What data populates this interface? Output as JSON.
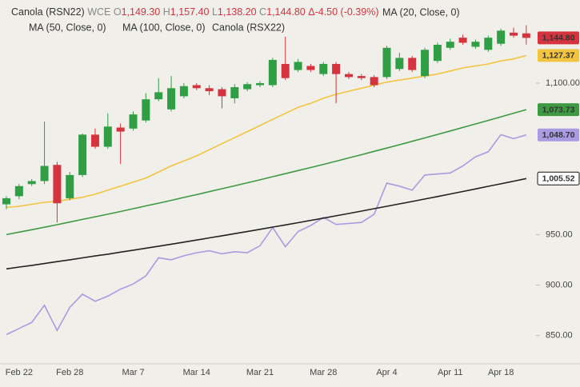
{
  "chart_data": {
    "type": "candlestick",
    "title": "Canola (RSN22)",
    "exchange": "WCE",
    "ohlc_header": {
      "o_key": "O",
      "o": "1,149.30",
      "h_key": "H",
      "h": "1,157.40",
      "l_key": "L",
      "l": "1,138.20",
      "c_key": "C",
      "c": "1,144.80",
      "change": "Δ-4.50 (-0.39%)"
    },
    "categories": [
      null,
      "Feb 22",
      null,
      null,
      null,
      "Feb 28",
      null,
      null,
      null,
      null,
      "Mar 7",
      null,
      null,
      null,
      null,
      "Mar 14",
      null,
      null,
      null,
      null,
      "Mar 21",
      null,
      null,
      null,
      null,
      "Mar 28",
      null,
      null,
      null,
      null,
      "Apr 4",
      null,
      null,
      null,
      null,
      "Apr 11",
      null,
      null,
      null,
      "Apr 18",
      null,
      null
    ],
    "open": [
      980,
      988,
      1000,
      1003,
      1019,
      986,
      1009,
      1049,
      1037,
      1056,
      1055,
      1063,
      1084,
      1074,
      1087,
      1098,
      1095,
      1094,
      1085,
      1094,
      1098,
      1098,
      1119,
      1113,
      1117,
      1109,
      1119,
      1109,
      1107,
      1106,
      1106,
      1114,
      1125,
      1107,
      1122,
      1135,
      1145,
      1136,
      1133,
      1139,
      1150,
      1149.3
    ],
    "high": [
      988,
      1000,
      1005,
      1062,
      1022,
      1012,
      1050,
      1055,
      1070,
      1060,
      1072,
      1090,
      1105,
      1107,
      1100,
      1100,
      1098,
      1096,
      1099,
      1101,
      1102,
      1125,
      1146,
      1124,
      1119,
      1121,
      1121,
      1111,
      1109,
      1108,
      1137,
      1130,
      1127,
      1135,
      1140,
      1144,
      1148,
      1143,
      1147,
      1154,
      1155,
      1157.4
    ],
    "low": [
      975,
      985,
      998,
      1000,
      962,
      984,
      1007,
      1035,
      1035,
      1020,
      1053,
      1061,
      1082,
      1072,
      1085,
      1093,
      1088,
      1075,
      1080,
      1092,
      1096,
      1096,
      1103,
      1111,
      1111,
      1107,
      1080,
      1104,
      1103,
      1096,
      1104,
      1112,
      1111,
      1105,
      1120,
      1133,
      1138,
      1134,
      1131,
      1137,
      1145,
      1138.2
    ],
    "close": [
      986,
      998,
      1003,
      1018,
      981,
      1009,
      1049,
      1037,
      1057,
      1052,
      1069,
      1084,
      1091,
      1095,
      1097,
      1095,
      1092,
      1087,
      1096,
      1099,
      1100,
      1123,
      1105,
      1121,
      1113,
      1119,
      1109,
      1106,
      1105,
      1098,
      1135,
      1125,
      1113,
      1133,
      1138,
      1141,
      1140,
      1141,
      1145,
      1152,
      1147,
      1144.8
    ],
    "up_color": "#2f9e44",
    "down_color": "#d3343e",
    "close_label": "1,144.80",
    "overlays": [
      {
        "name": "MA (20, Close, 0)",
        "color": "#f2c440",
        "last_label": "1,127.37",
        "values": [
          977,
          978,
          980,
          982,
          983,
          985,
          987,
          990,
          994,
          998,
          1002,
          1006,
          1012,
          1018,
          1023,
          1028,
          1034,
          1040,
          1046,
          1052,
          1058,
          1064,
          1070,
          1076,
          1080,
          1085,
          1089,
          1092,
          1095,
          1098,
          1101,
          1103,
          1105,
          1107,
          1109,
          1112,
          1115,
          1117,
          1119,
          1122,
          1124,
          1127.37
        ]
      },
      {
        "name": "MA (50, Close, 0)",
        "color": "#3d9a42",
        "last_label": "1,073.73",
        "values": [
          950,
          952.4,
          954.8,
          957.3,
          959.8,
          962.4,
          965,
          967.6,
          970.2,
          972.9,
          975.6,
          978.4,
          981.1,
          983.9,
          986.8,
          989.6,
          992.5,
          995.4,
          998.3,
          1001.3,
          1004.2,
          1007.3,
          1010.3,
          1013.4,
          1016.4,
          1019.5,
          1022.7,
          1025.9,
          1029.1,
          1032.4,
          1035.7,
          1039,
          1042.4,
          1045.7,
          1049.2,
          1052.6,
          1056.1,
          1059.6,
          1063.1,
          1066.6,
          1070.2,
          1073.73
        ]
      },
      {
        "name": "MA (100, Close, 0)",
        "color": "#222222",
        "last_label": "1,005.52",
        "values": [
          916,
          917.8,
          919.5,
          921.3,
          923.2,
          925,
          926.9,
          928.8,
          930.6,
          932.6,
          934.5,
          936.5,
          938.5,
          940.5,
          942.5,
          944.6,
          946.7,
          948.8,
          950.9,
          953,
          955.2,
          957.4,
          959.6,
          961.8,
          964.1,
          966.3,
          968.6,
          970.9,
          973.3,
          975.6,
          978,
          980.4,
          982.8,
          985.2,
          987.7,
          990.2,
          992.7,
          995.2,
          997.8,
          1000.3,
          1002.9,
          1005.52
        ]
      },
      {
        "name": "Canola (RSX22)",
        "color": "#a99be2",
        "last_label": "1,048.70",
        "values": [
          851,
          857,
          863,
          880,
          855,
          878,
          891,
          884,
          889,
          896,
          901,
          909,
          927,
          925,
          929,
          932,
          934,
          931,
          933,
          932,
          939,
          957,
          938,
          953,
          959,
          967,
          960,
          961,
          962,
          970,
          1001,
          998,
          994,
          1009,
          1010,
          1011,
          1018,
          1027,
          1032,
          1049,
          1045,
          1048.7
        ]
      }
    ],
    "ylim": [
      822,
      1176
    ],
    "yticks": [
      {
        "value": 850,
        "label": "850.00"
      },
      {
        "value": 900,
        "label": "900.00"
      },
      {
        "value": 950,
        "label": "950.00"
      },
      {
        "value": 1100,
        "label": "1,100.00"
      }
    ],
    "grid": false
  }
}
